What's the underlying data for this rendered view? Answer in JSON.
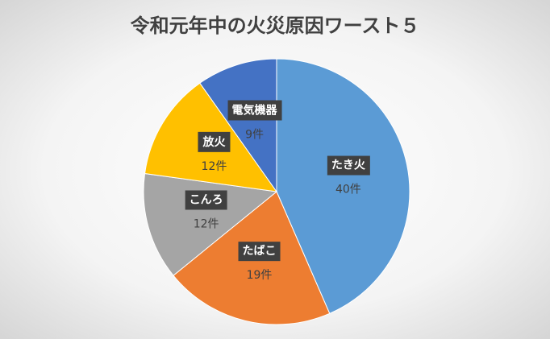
{
  "chart_data": {
    "type": "pie",
    "title": "令和元年中の火災原因ワースト５",
    "categories": [
      "たき火",
      "たばこ",
      "こんろ",
      "放火",
      "電気機器"
    ],
    "values": [
      40,
      19,
      12,
      12,
      9
    ],
    "value_labels": [
      "40件",
      "19件",
      "12件",
      "12件",
      "9件"
    ],
    "colors": [
      "#5b9bd5",
      "#ed7d31",
      "#a5a5a5",
      "#ffc000",
      "#4472c4"
    ]
  }
}
